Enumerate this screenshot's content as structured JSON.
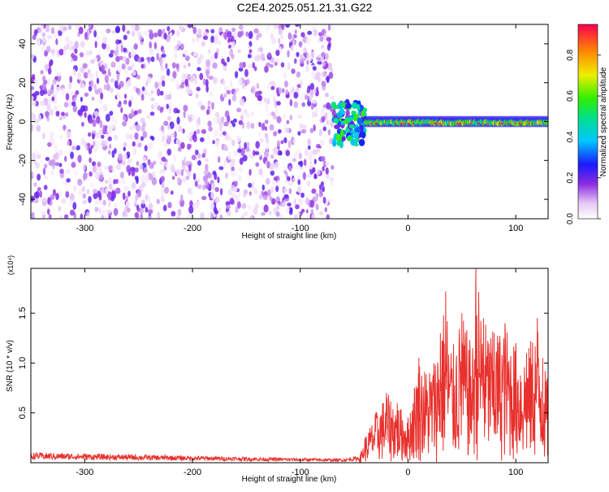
{
  "title": "C2E4.2025.051.21.31.G22",
  "chart_data": [
    {
      "type": "heatmap",
      "xlabel": "Height of straight line (km)",
      "ylabel": "Frequency (Hz)",
      "xlim": [
        -350,
        130
      ],
      "ylim": [
        -50,
        50
      ],
      "x_ticks": [
        -300,
        -200,
        -100,
        0,
        100
      ],
      "y_ticks": [
        -40,
        -20,
        0,
        20,
        40
      ],
      "colorbar": {
        "label": "Normalized spectral amplitude",
        "range": [
          0.0,
          0.95
        ],
        "ticks": [
          0.0,
          0.2,
          0.4,
          0.6,
          0.8
        ]
      },
      "regions": [
        {
          "x": [
            -350,
            -70
          ],
          "freq": [
            -50,
            50
          ],
          "amplitude": [
            0.02,
            0.22
          ]
        },
        {
          "x": [
            -70,
            -40
          ],
          "freq": [
            -12,
            10
          ],
          "amplitude": [
            0.15,
            0.6
          ]
        },
        {
          "x": [
            -40,
            130
          ],
          "freq": [
            -4,
            3
          ],
          "amplitude": [
            0.4,
            0.95
          ]
        }
      ]
    },
    {
      "type": "line",
      "xlabel": "Height of straight line (km)",
      "ylabel": "SNR (10 * v/v)",
      "y_multiplier": "(x10⁴)",
      "xlim": [
        -350,
        130
      ],
      "ylim": [
        0,
        1.95
      ],
      "x_ticks": [
        -300,
        -200,
        -100,
        0,
        100
      ],
      "y_ticks": [
        0.5,
        1.0,
        1.5
      ],
      "series": [
        {
          "color": "#e8302c",
          "x": [
            -350,
            -300,
            -250,
            -200,
            -150,
            -100,
            -60,
            -45,
            -40,
            -30,
            -20,
            -10,
            0,
            10,
            20,
            30,
            35,
            40,
            50,
            60,
            63,
            70,
            80,
            90,
            100,
            110,
            120,
            125,
            130
          ],
          "y": [
            0.09,
            0.08,
            0.07,
            0.06,
            0.05,
            0.04,
            0.035,
            0.06,
            0.25,
            0.5,
            0.7,
            0.6,
            0.45,
            1.05,
            0.9,
            1.3,
            1.72,
            1.1,
            1.5,
            1.15,
            1.95,
            1.45,
            1.3,
            1.4,
            1.2,
            1.1,
            1.45,
            1.05,
            0.8
          ]
        }
      ]
    }
  ]
}
